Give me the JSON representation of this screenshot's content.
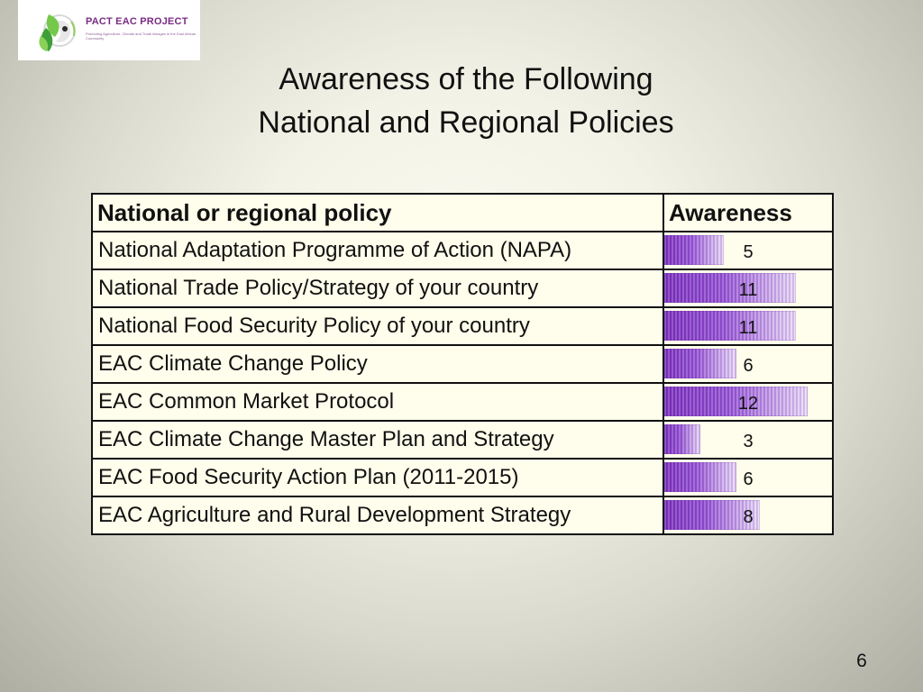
{
  "logo": {
    "title": "PACT EAC PROJECT",
    "subtitle": "Promoting Agriculture, Climate and Trade linkages in the East African Community",
    "icon": "leaf-globe-logo",
    "colors": {
      "green": "#7cc84a",
      "dark_green": "#3e9f35",
      "purple": "#7a2b84"
    }
  },
  "title": {
    "line1": "Awareness of the Following",
    "line2": "National and Regional Policies"
  },
  "table": {
    "headers": {
      "policy": "National or regional policy",
      "awareness": "Awareness"
    },
    "max_value": 14,
    "rows": [
      {
        "policy": "National Adaptation Programme of Action (NAPA)",
        "awareness": 5
      },
      {
        "policy": "National Trade Policy/Strategy of your country",
        "awareness": 11
      },
      {
        "policy": "National Food Security Policy of your country",
        "awareness": 11
      },
      {
        "policy": "EAC Climate Change Policy",
        "awareness": 6
      },
      {
        "policy": "EAC Common Market Protocol",
        "awareness": 12
      },
      {
        "policy": "EAC Climate Change Master Plan and Strategy",
        "awareness": 3
      },
      {
        "policy": "EAC Food Security Action Plan (2011-2015)",
        "awareness": 6
      },
      {
        "policy": "EAC Agriculture and Rural Development Strategy",
        "awareness": 8
      }
    ]
  },
  "page_number": "6",
  "colors": {
    "border": "#111111",
    "table_fill": "#fffdeb",
    "bar_purple": "#7428b8",
    "bar_light": "#e9dcf6"
  }
}
